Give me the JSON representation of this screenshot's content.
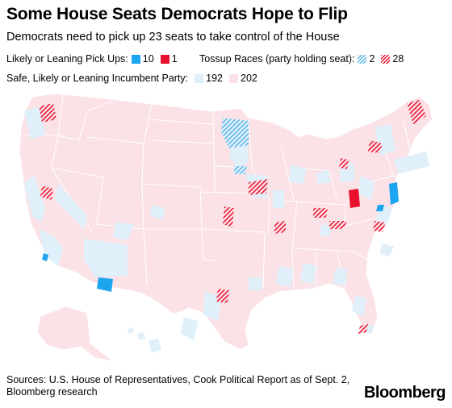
{
  "header": {
    "title": "Some House Seats Democrats Hope to Flip",
    "subtitle": "Democrats need to pick up 23 seats to take control of the House"
  },
  "legend": {
    "likely": {
      "label": "Likely or Leaning Pick Ups:",
      "dem": "10",
      "rep": "1"
    },
    "tossup": {
      "label": "Tossup Races (party holding seat):",
      "dem": "2",
      "rep": "28"
    },
    "safe": {
      "label": "Safe, Likely or Leaning Incumbent Party:",
      "dem": "192",
      "rep": "202"
    }
  },
  "colors": {
    "dem_pickup": "#1ea5f0",
    "rep_pickup": "#e8112d",
    "dem_safe": "#dff0fb",
    "rep_safe": "#fbe2e7",
    "dem_tossup_hatch": "#5db6ea",
    "rep_tossup_hatch": "#e8112d",
    "border": "#ffffff"
  },
  "footer": {
    "source": "Sources: U.S. House of Representatives, Cook Political Report as of Sept. 2, Bloomberg research",
    "brand": "Bloomberg"
  }
}
